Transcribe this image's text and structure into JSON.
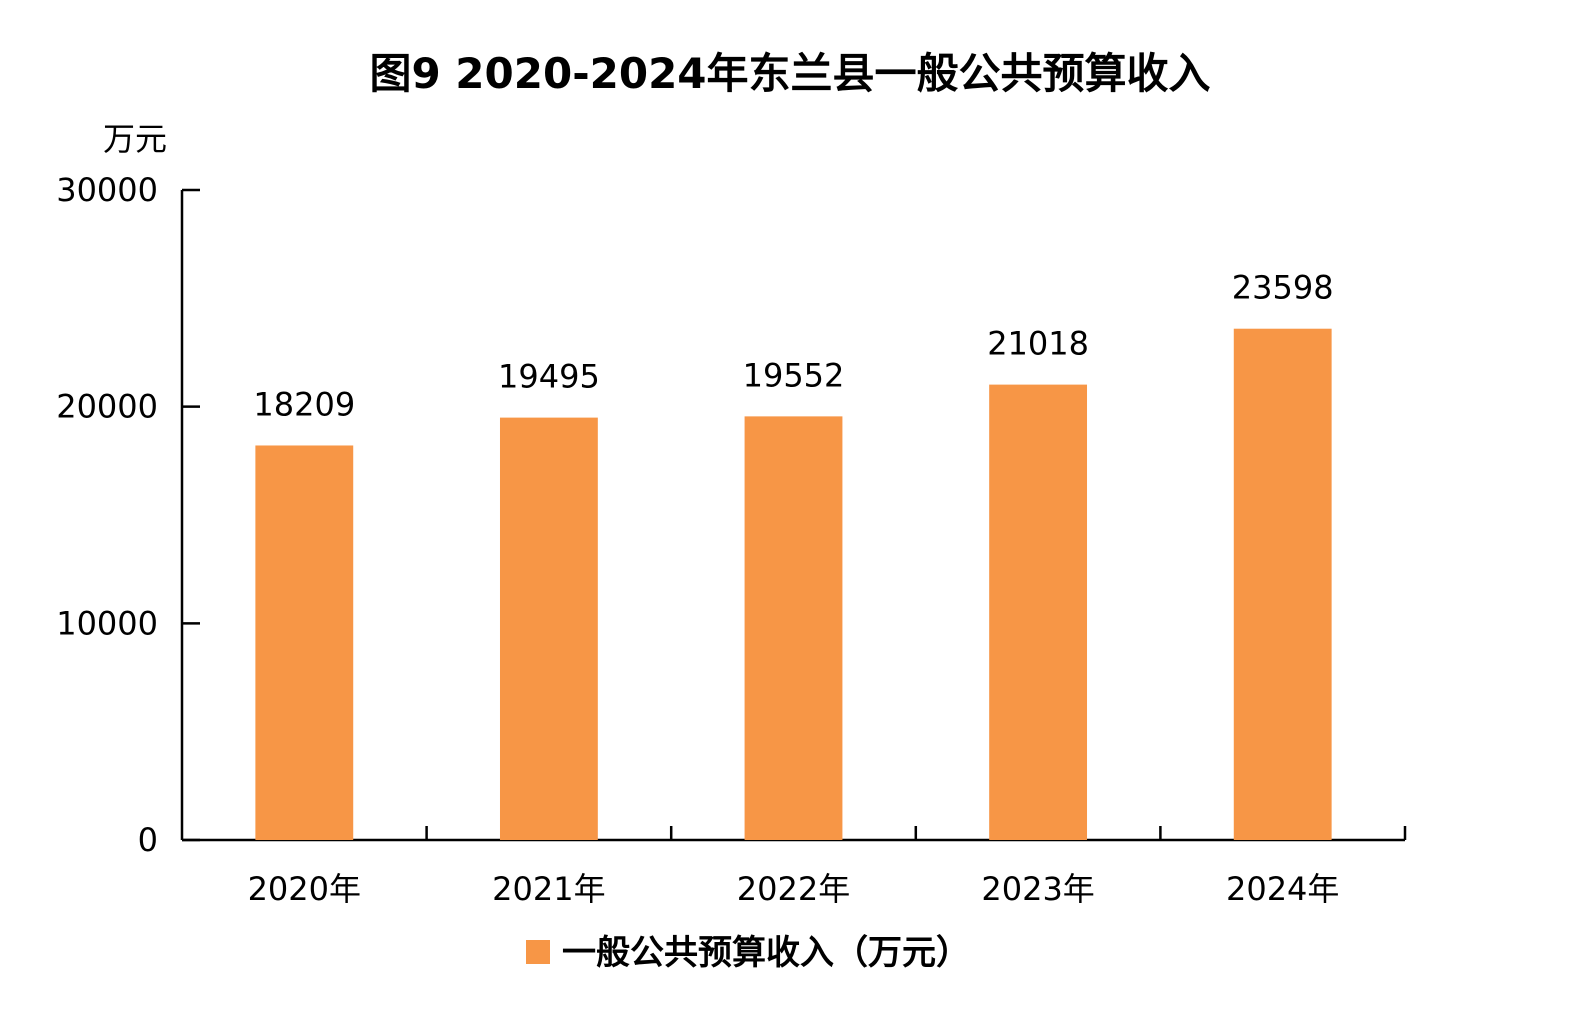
{
  "chart_data": {
    "type": "bar",
    "title": "图9   2020-2024年东兰县一般公共预算收入",
    "ylabel": "万元",
    "xlabel": "",
    "categories": [
      "2020年",
      "2021年",
      "2022年",
      "2023年",
      "2024年"
    ],
    "series": [
      {
        "name": "一般公共预算收入（万元）",
        "values": [
          18209,
          19495,
          19552,
          21018,
          23598
        ],
        "color": "#F79646"
      }
    ],
    "ylim": [
      0,
      30000
    ],
    "yticks": [
      0,
      10000,
      20000,
      30000
    ],
    "ytick_labels": [
      "0",
      "10000",
      "20000",
      "30000"
    ],
    "value_labels": [
      "18209",
      "19495",
      "19552",
      "21018",
      "23598"
    ],
    "legend": {
      "position": "bottom",
      "label": "一般公共预算收入（万元）"
    },
    "grid": false
  }
}
